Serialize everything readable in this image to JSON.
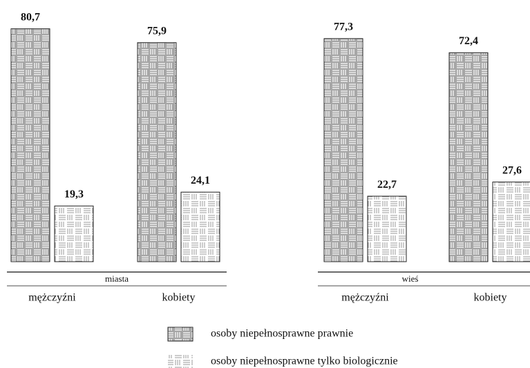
{
  "chart_data": {
    "type": "bar",
    "group_labels": [
      "miasta",
      "wieś"
    ],
    "categories": [
      "mężczyźni",
      "kobiety",
      "mężczyźni",
      "kobiety"
    ],
    "series": [
      {
        "name": "osoby niepełnosprawne prawnie",
        "color": "#a6a6a6",
        "values": [
          80.7,
          75.9,
          77.3,
          72.4
        ],
        "value_labels": [
          "80,7",
          "75,9",
          "77,3",
          "72,4"
        ]
      },
      {
        "name": "osoby niepełnosprawne tylko biologicznie",
        "color": "#ffffff",
        "values": [
          19.3,
          24.1,
          22.7,
          27.6
        ],
        "value_labels": [
          "19,3",
          "24,1",
          "22,7",
          "27,6"
        ]
      }
    ]
  }
}
